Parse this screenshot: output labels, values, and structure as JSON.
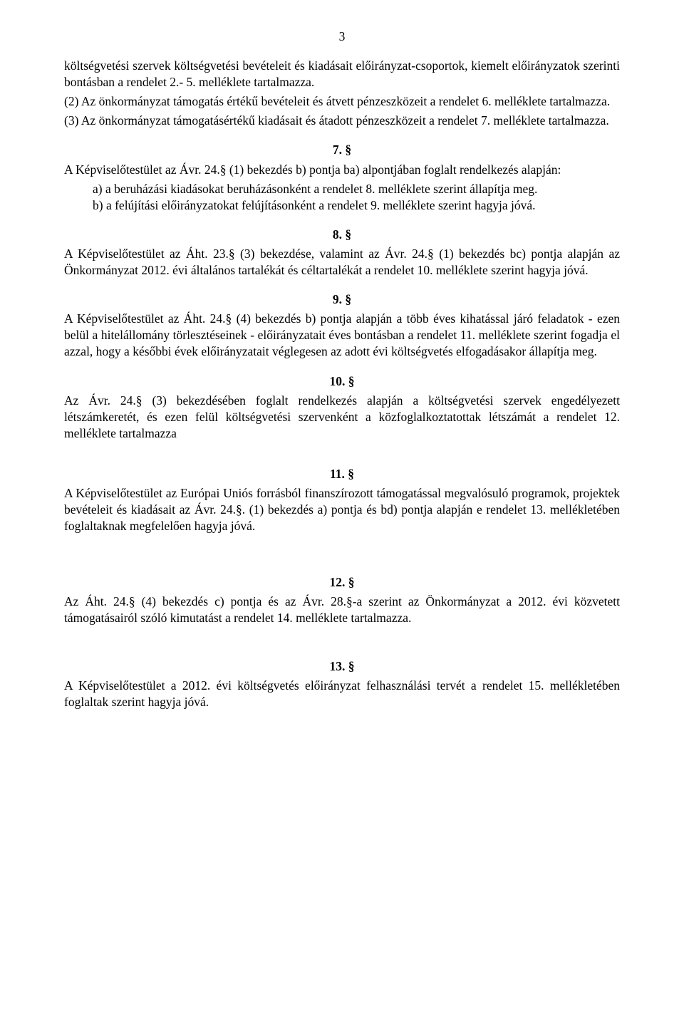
{
  "pageNumber": "3",
  "p1": "költségvetési szervek költségvetési bevételeit és kiadásait előirányzat-csoportok, kiemelt előirányzatok szerinti bontásban a rendelet 2.- 5. melléklete tartalmazza.",
  "p2": "(2) Az önkormányzat támogatás értékű bevételeit és átvett pénzeszközeit a rendelet 6. melléklete tartalmazza.",
  "p3": "(3) Az önkormányzat támogatásértékű kiadásait és átadott pénzeszközeit a rendelet 7. melléklete tartalmazza.",
  "s7": {
    "head": "7. §",
    "intro": "A Képviselőtestület az Ávr. 24.§ (1) bekezdés b) pontja ba) alpontjában foglalt rendelkezés alapján:",
    "a": "a)  a beruházási kiadásokat beruházásonként a rendelet 8. melléklete szerint állapítja meg.",
    "b": "b)  a felújítási előirányzatokat felújításonként a rendelet 9. melléklete szerint hagyja jóvá."
  },
  "s8": {
    "head": "8. §",
    "body": "A Képviselőtestület az Áht. 23.§ (3) bekezdése, valamint az Ávr. 24.§ (1) bekezdés bc) pontja alapján az Önkormányzat 2012. évi általános tartalékát és céltartalékát a rendelet 10. melléklete szerint hagyja jóvá."
  },
  "s9": {
    "head": "9. §",
    "body": "A Képviselőtestület az Áht. 24.§ (4) bekezdés b) pontja alapján a több éves kihatással járó feladatok - ezen belül a hitelállomány törlesztéseinek - előirányzatait éves bontásban a rendelet 11. melléklete szerint fogadja el azzal, hogy a későbbi évek előirányzatait véglegesen az adott évi költségvetés elfogadásakor állapítja meg."
  },
  "s10": {
    "head": "10. §",
    "body": "Az Ávr. 24.§ (3) bekezdésében foglalt rendelkezés alapján a költségvetési szervek engedélyezett létszámkeretét, és ezen felül költségvetési szervenként a közfoglalkoztatottak létszámát a rendelet 12. melléklete tartalmazza"
  },
  "s11": {
    "head": "11. §",
    "body": "A Képviselőtestület az Európai Uniós forrásból finanszírozott támogatással megvalósuló programok, projektek bevételeit és kiadásait az Ávr. 24.§. (1) bekezdés a) pontja és bd) pontja alapján e rendelet 13. mellékletében foglaltaknak megfelelően hagyja jóvá."
  },
  "s12": {
    "head": "12. §",
    "body": "Az Áht. 24.§ (4) bekezdés c) pontja és az Ávr. 28.§-a szerint az Önkormányzat a 2012. évi közvetett támogatásairól szóló kimutatást a rendelet 14. melléklete tartalmazza."
  },
  "s13": {
    "head": "13. §",
    "body": "A Képviselőtestület a 2012. évi költségvetés előirányzat felhasználási tervét a rendelet 15. mellékletében foglaltak szerint hagyja jóvá."
  }
}
